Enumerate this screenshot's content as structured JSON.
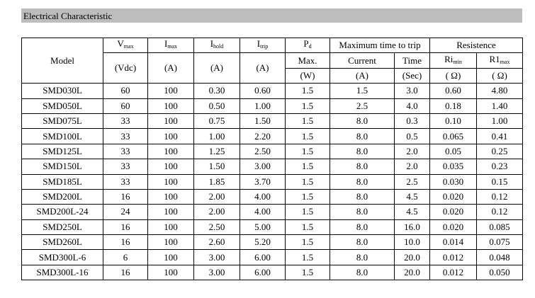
{
  "header": {
    "title": "Electrical Characteristic"
  },
  "table": {
    "columns": [
      {
        "label": "Model"
      },
      {
        "symbol": "V",
        "sub": "max",
        "unit": "(Vdc)"
      },
      {
        "symbol": "I",
        "sub": "max",
        "unit": "(A)"
      },
      {
        "symbol": "I",
        "sub": "hold",
        "unit": "(A)"
      },
      {
        "symbol": "I",
        "sub": "trip",
        "unit": "(A)"
      },
      {
        "symbol": "P",
        "sub": "d",
        "extra": "Max.",
        "unit": "(W)"
      }
    ],
    "groups": [
      {
        "title": "Maximum time to trip",
        "columns": [
          {
            "label": "Current",
            "unit": "(A)"
          },
          {
            "label": "Time",
            "unit": "(Sec)"
          }
        ]
      },
      {
        "title": "Resistence",
        "columns": [
          {
            "symbol": "Ri",
            "sub": "min",
            "unit": "( Ω)"
          },
          {
            "symbol": "R1",
            "sub": "max",
            "unit": "( Ω)"
          }
        ]
      }
    ],
    "rows": [
      [
        "SMD030L",
        "60",
        "100",
        "0.30",
        "0.60",
        "1.5",
        "1.5",
        "3.0",
        "0.60",
        "4.80"
      ],
      [
        "SMD050L",
        "60",
        "100",
        "0.50",
        "1.00",
        "1.5",
        "2.5",
        "4.0",
        "0.18",
        "1.40"
      ],
      [
        "SMD075L",
        "33",
        "100",
        "0.75",
        "1.50",
        "1.5",
        "8.0",
        "0.3",
        "0.10",
        "1.00"
      ],
      [
        "SMD100L",
        "33",
        "100",
        "1.00",
        "2.20",
        "1.5",
        "8.0",
        "0.5",
        "0.065",
        "0.41"
      ],
      [
        "SMD125L",
        "33",
        "100",
        "1.25",
        "2.50",
        "1.5",
        "8.0",
        "2.0",
        "0.05",
        "0.25"
      ],
      [
        "SMD150L",
        "33",
        "100",
        "1.50",
        "3.00",
        "1.5",
        "8.0",
        "2.0",
        "0.035",
        "0.23"
      ],
      [
        "SMD185L",
        "33",
        "100",
        "1.85",
        "3.70",
        "1.5",
        "8.0",
        "2.5",
        "0.030",
        "0.15"
      ],
      [
        "SMD200L",
        "16",
        "100",
        "2.00",
        "4.00",
        "1.5",
        "8.0",
        "4.5",
        "0.020",
        "0.12"
      ],
      [
        "SMD200L-24",
        "24",
        "100",
        "2.00",
        "4.00",
        "1.5",
        "8.0",
        "4.5",
        "0.020",
        "0.12"
      ],
      [
        "SMD250L",
        "16",
        "100",
        "2.50",
        "5.00",
        "1.5",
        "8.0",
        "16.0",
        "0.020",
        "0.085"
      ],
      [
        "SMD260L",
        "16",
        "100",
        "2.60",
        "5.20",
        "1.5",
        "8.0",
        "10.0",
        "0.014",
        "0.075"
      ],
      [
        "SMD300L-6",
        "6",
        "100",
        "3.00",
        "6.00",
        "1.5",
        "8.0",
        "20.0",
        "0.012",
        "0.048"
      ],
      [
        "SMD300L-16",
        "16",
        "100",
        "3.00",
        "6.00",
        "1.5",
        "8.0",
        "20.0",
        "0.012",
        "0.050"
      ]
    ]
  }
}
